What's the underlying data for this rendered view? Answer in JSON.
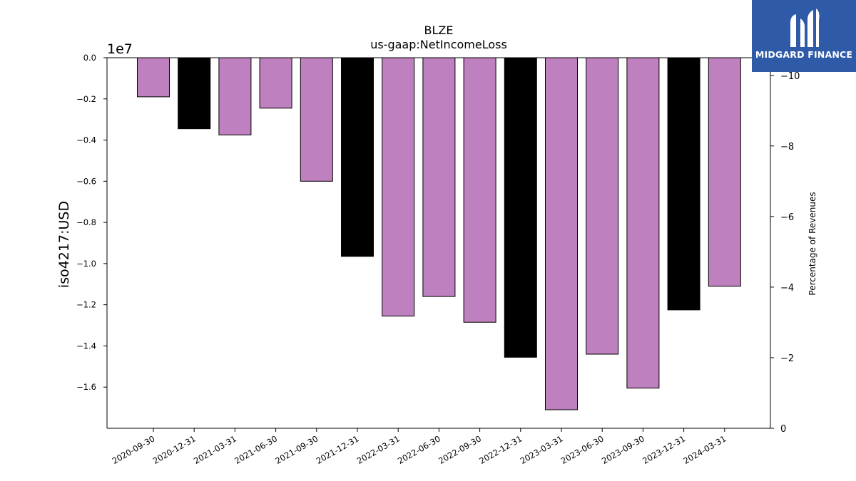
{
  "chart_data": {
    "type": "bar",
    "title": "BLZE",
    "subtitle": "us-gaap:NetIncomeLoss",
    "ylabel": "iso4217:USD",
    "y_offset_label": "1e7",
    "y2label": "Percentage of Revenues",
    "ylim": [
      -1.8,
      0
    ],
    "y_scale_note": "values in units of 1e7 USD",
    "yticks": [
      "0.0",
      "−0.2",
      "−0.4",
      "−0.6",
      "−0.8",
      "−1.0",
      "−1.2",
      "−1.4",
      "−1.6"
    ],
    "y2ticks": [
      "−10",
      "−8",
      "−6",
      "−4",
      "−2",
      "0"
    ],
    "y2lim": [
      0,
      -10.5
    ],
    "categories": [
      "2020-09-30",
      "2020-12-31",
      "2021-03-31",
      "2021-06-30",
      "2021-09-30",
      "2021-12-31",
      "2022-03-31",
      "2022-06-30",
      "2022-09-30",
      "2022-12-31",
      "2023-03-31",
      "2023-06-30",
      "2023-09-30",
      "2023-12-31",
      "2024-03-31"
    ],
    "values": [
      -0.19,
      -0.345,
      -0.375,
      -0.245,
      -0.6,
      -0.965,
      -1.255,
      -1.16,
      -1.285,
      -1.455,
      -1.71,
      -1.44,
      -1.605,
      -1.225,
      -1.11
    ],
    "bar_colors": [
      "#bf80bf",
      "#000000",
      "#bf80bf",
      "#bf80bf",
      "#bf80bf",
      "#000000",
      "#bf80bf",
      "#bf80bf",
      "#bf80bf",
      "#000000",
      "#bf80bf",
      "#bf80bf",
      "#bf80bf",
      "#000000",
      "#bf80bf"
    ],
    "grid": false
  },
  "logo": {
    "text": "MIDGARD FINANCE",
    "bg": "#2f5aa8"
  }
}
